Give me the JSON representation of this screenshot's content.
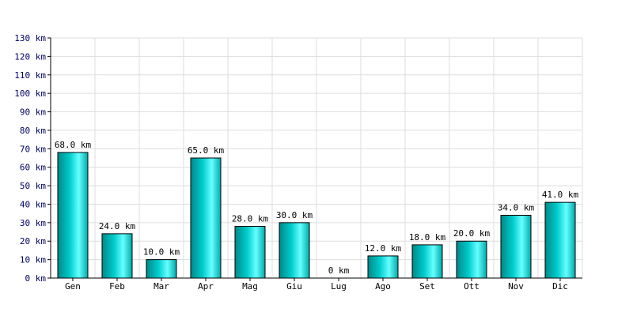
{
  "chart_data": {
    "type": "bar",
    "title": "",
    "xlabel": "",
    "ylabel": "",
    "unit": "km",
    "categories": [
      "Gen",
      "Feb",
      "Mar",
      "Apr",
      "Mag",
      "Giu",
      "Lug",
      "Ago",
      "Set",
      "Ott",
      "Nov",
      "Dic"
    ],
    "values": [
      68,
      24,
      10,
      65,
      28,
      30,
      0,
      12,
      18,
      20,
      34,
      41
    ],
    "data_labels": [
      "68.0 km",
      "24.0 km",
      "10.0 km",
      "65.0 km",
      "28.0 km",
      "30.0 km",
      "0 km",
      "12.0 km",
      "18.0 km",
      "20.0 km",
      "34.0 km",
      "41.0 km"
    ],
    "ylim": [
      0,
      130
    ],
    "yticks": [
      0,
      10,
      20,
      30,
      40,
      50,
      60,
      70,
      80,
      90,
      100,
      110,
      120,
      130
    ],
    "ytick_labels": [
      "0 km",
      "10 km",
      "20 km",
      "30 km",
      "40 km",
      "50 km",
      "60 km",
      "70 km",
      "80 km",
      "90 km",
      "100 km",
      "110 km",
      "120 km",
      "130 km"
    ],
    "grid": true,
    "colors": {
      "bar_light": "#66ffff",
      "bar_mid": "#00cccc",
      "bar_dark": "#008888",
      "grid": "#dddddd",
      "axis": "#000000",
      "ytick_text": "#000066"
    }
  }
}
